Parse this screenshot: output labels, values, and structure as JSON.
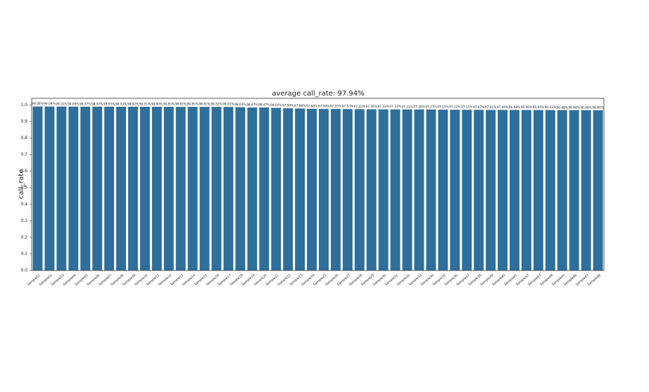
{
  "chart_data": {
    "type": "bar",
    "title": "average call_rate: 97.94%",
    "ylabel": "call_rate",
    "color": "#2e6f9c",
    "categories": [
      "Sample01",
      "Sample02",
      "Sample03",
      "Sample04",
      "Sample05",
      "Sample06",
      "Sample07",
      "Sample08",
      "Sample09",
      "Sample10",
      "Sample11",
      "Sample12",
      "Sample13",
      "Sample14",
      "Sample15",
      "Sample16",
      "Sample17",
      "Sample18",
      "Sample19",
      "Sample20",
      "Sample21",
      "Sample22",
      "Sample23",
      "Sample24",
      "Sample25",
      "Sample26",
      "Sample27",
      "Sample28",
      "Sample29",
      "Sample30",
      "Sample31",
      "Sample32",
      "Sample33",
      "Sample34",
      "Sample35",
      "Sample36",
      "Sample37",
      "Sample38",
      "Sample39",
      "Sample40",
      "Sample41",
      "Sample42",
      "Sample43",
      "Sample44",
      "Sample45",
      "Sample46",
      "Sample47",
      "Sample48"
    ],
    "values": [
      0.9906,
      0.9904,
      0.9901,
      0.99,
      0.9897,
      0.9897,
      0.9895,
      0.9893,
      0.9892,
      0.9891,
      0.989,
      0.9885,
      0.9885,
      0.9885,
      0.9885,
      0.9882,
      0.9881,
      0.9863,
      0.9847,
      0.9847,
      0.9826,
      0.9799,
      0.9788,
      0.9768,
      0.9759,
      0.9755,
      0.9753,
      0.9743,
      0.9739,
      0.9733,
      0.9733,
      0.9731,
      0.973,
      0.9727,
      0.9715,
      0.9712,
      0.9711,
      0.9707,
      0.9701,
      0.97,
      0.9698,
      0.9696,
      0.9694,
      0.9693,
      0.9688,
      0.9688,
      0.9686,
      0.968
    ],
    "value_labels": [
      "99.06%",
      "99.04%",
      "99.01%",
      "99.00%",
      "98.97%",
      "98.97%",
      "98.95%",
      "98.93%",
      "98.92%",
      "98.91%",
      "98.90%",
      "98.85%",
      "98.85%",
      "98.85%",
      "98.85%",
      "98.82%",
      "98.81%",
      "98.63%",
      "98.47%",
      "98.47%",
      "98.26%",
      "97.99%",
      "97.88%",
      "97.68%",
      "97.59%",
      "97.55%",
      "97.53%",
      "97.43%",
      "97.39%",
      "97.33%",
      "97.33%",
      "97.31%",
      "97.30%",
      "97.27%",
      "97.15%",
      "97.12%",
      "97.11%",
      "97.07%",
      "97.01%",
      "97.00%",
      "96.98%",
      "96.96%",
      "96.94%",
      "96.93%",
      "96.88%",
      "96.88%",
      "96.86%",
      "96.80%"
    ],
    "ylim": [
      0,
      1.04
    ],
    "yticks": [
      {
        "value": 0,
        "label": "0.0"
      },
      0.1,
      0.2,
      0.3,
      0.4,
      0.5,
      0.6,
      0.7,
      0.8,
      0.9,
      {
        "value": 1,
        "label": "1.0"
      }
    ]
  }
}
